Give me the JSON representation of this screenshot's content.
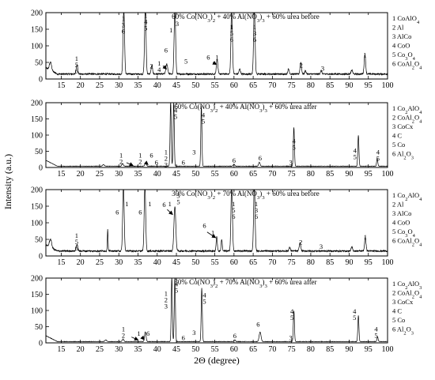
{
  "figure": {
    "ylabel": "Intensity (a.u.)",
    "xlabel": "2Θ (degree)"
  },
  "chart_data": [
    {
      "type": "line",
      "title": "60% Co(NO3)2 + 40% Al(NO3)3 + 60% urea before",
      "xlim": [
        11,
        100
      ],
      "ylim": [
        0,
        200
      ],
      "xticks": [
        15,
        20,
        25,
        30,
        35,
        40,
        45,
        50,
        55,
        60,
        65,
        70,
        75,
        80,
        85,
        90,
        95,
        100
      ],
      "yticks": [
        0,
        50,
        100,
        150,
        200
      ],
      "baseline": 15,
      "peaks": [
        {
          "x": 12.2,
          "h": 25,
          "w": 0.6
        },
        {
          "x": 19.1,
          "h": 30,
          "w": 0.4
        },
        {
          "x": 31.3,
          "h": 200,
          "w": 0.4
        },
        {
          "x": 36.9,
          "h": 200,
          "w": 0.4
        },
        {
          "x": 38.6,
          "h": 25,
          "w": 0.4
        },
        {
          "x": 42.5,
          "h": 30,
          "w": 0.5
        },
        {
          "x": 44.6,
          "h": 200,
          "w": 0.4
        },
        {
          "x": 55.6,
          "h": 45,
          "w": 0.4
        },
        {
          "x": 59.4,
          "h": 200,
          "w": 0.4
        },
        {
          "x": 61.5,
          "h": 15,
          "w": 0.4
        },
        {
          "x": 65.3,
          "h": 200,
          "w": 0.4
        },
        {
          "x": 74.2,
          "h": 15,
          "w": 0.4
        },
        {
          "x": 77.4,
          "h": 35,
          "w": 0.4
        },
        {
          "x": 78.6,
          "h": 10,
          "w": 0.4
        },
        {
          "x": 82.7,
          "h": 10,
          "w": 0.4
        },
        {
          "x": 90.7,
          "h": 12,
          "w": 0.4
        },
        {
          "x": 94.1,
          "h": 60,
          "w": 0.4
        }
      ],
      "legend": [
        "1 CoAlO4",
        "2 Al",
        "3 AlCo",
        "4 CoO",
        "5 Co3O4",
        "6 CoAl2O4"
      ],
      "annotations": [
        {
          "x": 19,
          "y": 55,
          "lines": [
            "1",
            "5",
            "6"
          ]
        },
        {
          "x": 31.2,
          "y": 175,
          "lines": [
            "1",
            "3",
            "6"
          ]
        },
        {
          "x": 37,
          "y": 185,
          "lines": [
            "1",
            "4",
            "5"
          ]
        },
        {
          "x": 38.5,
          "y": 32,
          "lines": [
            "2"
          ]
        },
        {
          "x": 40.5,
          "y": 40,
          "lines": [
            "1",
            "4"
          ]
        },
        {
          "x": 42.3,
          "y": 80,
          "lines": [
            "6"
          ]
        },
        {
          "x": 43.6,
          "y": 140,
          "lines": [
            "1"
          ]
        },
        {
          "x": 45.2,
          "y": 160,
          "lines": [
            "3"
          ]
        },
        {
          "x": 47.5,
          "y": 47,
          "lines": [
            "5"
          ]
        },
        {
          "x": 53.3,
          "y": 58,
          "lines": [
            "6"
          ]
        },
        {
          "x": 55.6,
          "y": 58,
          "lines": [
            "1"
          ]
        },
        {
          "x": 59.4,
          "y": 150,
          "lines": [
            "1",
            "5",
            "6"
          ]
        },
        {
          "x": 65.4,
          "y": 150,
          "lines": [
            "1",
            "3",
            "6"
          ]
        },
        {
          "x": 77.5,
          "y": 35,
          "lines": [
            "2"
          ]
        },
        {
          "x": 83.1,
          "y": 25,
          "lines": [
            "3"
          ]
        },
        {
          "x": 94.1,
          "y": 65,
          "lines": [
            "1"
          ]
        }
      ],
      "arrows": [
        {
          "from": [
            41.5,
            40
          ],
          "to": [
            42.4,
            30
          ]
        },
        {
          "from": [
            54.5,
            50
          ],
          "to": [
            55.4,
            44
          ]
        }
      ]
    },
    {
      "type": "line",
      "title": "60% Co(NO3)2 + 40% Al(NO3)3 + 60% urea after",
      "xlim": [
        11,
        100
      ],
      "ylim": [
        0,
        200
      ],
      "xticks": [
        15,
        20,
        25,
        30,
        35,
        40,
        45,
        50,
        55,
        60,
        65,
        70,
        75,
        80,
        85,
        90,
        95,
        100
      ],
      "yticks": [
        0,
        50,
        100,
        150,
        200
      ],
      "baseline": 4,
      "peaks": [
        {
          "x": 26,
          "h": 5,
          "w": 0.5
        },
        {
          "x": 31,
          "h": 8,
          "w": 0.4
        },
        {
          "x": 37,
          "h": 12,
          "w": 0.4
        },
        {
          "x": 43.5,
          "h": 200,
          "w": 0.3
        },
        {
          "x": 44.3,
          "h": 200,
          "w": 0.3
        },
        {
          "x": 51.5,
          "h": 185,
          "w": 0.3
        },
        {
          "x": 60,
          "h": 6,
          "w": 0.4
        },
        {
          "x": 66.6,
          "h": 12,
          "w": 0.4
        },
        {
          "x": 75.6,
          "h": 120,
          "w": 0.3
        },
        {
          "x": 92.4,
          "h": 95,
          "w": 0.3
        },
        {
          "x": 97.3,
          "h": 25,
          "w": 0.3
        }
      ],
      "legend": [
        "1 Co2AlO4",
        "2 CoAl2O4",
        "3 CoCx",
        "4 C",
        "5 Co",
        "6 Al2O3"
      ],
      "annotations": [
        {
          "x": 30.6,
          "y": 30,
          "lines": [
            "1",
            "2"
          ]
        },
        {
          "x": 35.6,
          "y": 30,
          "lines": [
            "1",
            "2"
          ]
        },
        {
          "x": 38.5,
          "y": 30,
          "lines": [
            "6"
          ]
        },
        {
          "x": 39.8,
          "y": 8,
          "lines": [
            "6"
          ]
        },
        {
          "x": 42.3,
          "y": 40,
          "lines": [
            "1",
            "2",
            "3"
          ]
        },
        {
          "x": 44.8,
          "y": 170,
          "lines": [
            "4",
            "5"
          ]
        },
        {
          "x": 46.8,
          "y": 8,
          "lines": [
            "6"
          ]
        },
        {
          "x": 49.6,
          "y": 40,
          "lines": [
            "3"
          ]
        },
        {
          "x": 52,
          "y": 155,
          "lines": [
            "4",
            "5"
          ]
        },
        {
          "x": 60,
          "y": 15,
          "lines": [
            "6"
          ]
        },
        {
          "x": 66.8,
          "y": 22,
          "lines": [
            "6"
          ]
        },
        {
          "x": 74.8,
          "y": 8,
          "lines": [
            "3"
          ]
        },
        {
          "x": 75.6,
          "y": 75,
          "lines": [
            "4",
            "5"
          ]
        },
        {
          "x": 91.5,
          "y": 45,
          "lines": [
            "4",
            "5"
          ]
        },
        {
          "x": 97.5,
          "y": 40,
          "lines": [
            "4",
            "5"
          ]
        }
      ],
      "arrows": [
        {
          "from": [
            32,
            15
          ],
          "to": [
            33.7,
            6
          ]
        },
        {
          "from": [
            37,
            15
          ],
          "to": [
            37.6,
            9
          ]
        }
      ]
    },
    {
      "type": "line",
      "title": "30% Co(NO3)2 + 70% Al(NO3)3 + 60% urea before",
      "xlim": [
        11,
        100
      ],
      "ylim": [
        0,
        200
      ],
      "xticks": [
        15,
        20,
        25,
        30,
        35,
        40,
        45,
        50,
        55,
        60,
        65,
        70,
        75,
        80,
        85,
        90,
        95,
        100
      ],
      "yticks": [
        0,
        50,
        100,
        150,
        200
      ],
      "baseline": 15,
      "peaks": [
        {
          "x": 12.2,
          "h": 25,
          "w": 0.6
        },
        {
          "x": 19.1,
          "h": 20,
          "w": 0.4
        },
        {
          "x": 27.1,
          "h": 65,
          "w": 0.2
        },
        {
          "x": 31.2,
          "h": 200,
          "w": 0.4
        },
        {
          "x": 36.8,
          "h": 200,
          "w": 0.4
        },
        {
          "x": 44.6,
          "h": 135,
          "w": 0.5
        },
        {
          "x": 55.5,
          "h": 45,
          "w": 0.3
        },
        {
          "x": 56.8,
          "h": 35,
          "w": 0.3
        },
        {
          "x": 59.4,
          "h": 200,
          "w": 0.4
        },
        {
          "x": 65.3,
          "h": 200,
          "w": 0.4
        },
        {
          "x": 74.5,
          "h": 10,
          "w": 0.4
        },
        {
          "x": 77.2,
          "h": 25,
          "w": 0.4
        },
        {
          "x": 90.7,
          "h": 12,
          "w": 0.4
        },
        {
          "x": 94.2,
          "h": 40,
          "w": 0.4
        }
      ],
      "legend": [
        "1 Co2AlO4",
        "2 Al",
        "3 AlCo",
        "4 CoO",
        "5 Co3O4",
        "6 CoAl2O4"
      ],
      "annotations": [
        {
          "x": 19,
          "y": 55,
          "lines": [
            "1",
            "5",
            "6"
          ]
        },
        {
          "x": 29.6,
          "y": 125,
          "lines": [
            "6"
          ]
        },
        {
          "x": 32.1,
          "y": 150,
          "lines": [
            "1"
          ]
        },
        {
          "x": 35.6,
          "y": 125,
          "lines": [
            "6"
          ]
        },
        {
          "x": 38.1,
          "y": 150,
          "lines": [
            "1"
          ]
        },
        {
          "x": 41.8,
          "y": 148,
          "lines": [
            "6"
          ]
        },
        {
          "x": 43.3,
          "y": 150,
          "lines": [
            "1"
          ]
        },
        {
          "x": 45.5,
          "y": 175,
          "lines": [
            "3",
            "5"
          ]
        },
        {
          "x": 52.3,
          "y": 85,
          "lines": [
            "6"
          ]
        },
        {
          "x": 54.5,
          "y": 63,
          "lines": [
            "1"
          ]
        },
        {
          "x": 59.9,
          "y": 150,
          "lines": [
            "1",
            "5",
            "6"
          ]
        },
        {
          "x": 65.8,
          "y": 150,
          "lines": [
            "1",
            "3",
            "6"
          ]
        },
        {
          "x": 77.4,
          "y": 35,
          "lines": [
            "2"
          ]
        },
        {
          "x": 82.7,
          "y": 22,
          "lines": [
            "3"
          ]
        },
        {
          "x": 94.2,
          "y": 50,
          "lines": [
            "1"
          ]
        }
      ],
      "arrows": [
        {
          "from": [
            42.6,
            140
          ],
          "to": [
            44,
            125
          ]
        },
        {
          "from": [
            53,
            72
          ],
          "to": [
            55.2,
            55
          ]
        }
      ]
    },
    {
      "type": "line",
      "title": "30% Co(NO3)2 + 70% Al(NO3)3 + 60% urea after",
      "xlim": [
        11,
        100
      ],
      "ylim": [
        0,
        200
      ],
      "xticks": [
        15,
        20,
        25,
        30,
        35,
        40,
        45,
        50,
        55,
        60,
        65,
        70,
        75,
        80,
        85,
        90,
        95,
        100
      ],
      "yticks": [
        0,
        50,
        100,
        150,
        200
      ],
      "baseline": 4,
      "peaks": [
        {
          "x": 26.6,
          "h": 5,
          "w": 0.5
        },
        {
          "x": 31.1,
          "h": 8,
          "w": 0.4
        },
        {
          "x": 36.9,
          "h": 30,
          "w": 0.4
        },
        {
          "x": 43.8,
          "h": 200,
          "w": 0.3
        },
        {
          "x": 44.6,
          "h": 200,
          "w": 0.3
        },
        {
          "x": 51.6,
          "h": 165,
          "w": 0.3
        },
        {
          "x": 60.2,
          "h": 5,
          "w": 0.4
        },
        {
          "x": 66.8,
          "h": 30,
          "w": 0.5
        },
        {
          "x": 75.6,
          "h": 95,
          "w": 0.3
        },
        {
          "x": 92.4,
          "h": 80,
          "w": 0.3
        },
        {
          "x": 97.4,
          "h": 15,
          "w": 0.3
        }
      ],
      "legend": [
        "1 Co2AlO3",
        "2 CoAl2O4",
        "3 CoCx",
        "4 C",
        "5 Co",
        "6 Al2O3"
      ],
      "annotations": [
        {
          "x": 31.2,
          "y": 35,
          "lines": [
            "1",
            "2"
          ]
        },
        {
          "x": 35.2,
          "y": 22,
          "lines": [
            "1"
          ]
        },
        {
          "x": 37.6,
          "y": 22,
          "lines": [
            "6"
          ]
        },
        {
          "x": 42.3,
          "y": 145,
          "lines": [
            "1",
            "2",
            "3"
          ]
        },
        {
          "x": 45,
          "y": 175,
          "lines": [
            "4",
            "5"
          ]
        },
        {
          "x": 46.8,
          "y": 8,
          "lines": [
            "6"
          ]
        },
        {
          "x": 49.6,
          "y": 25,
          "lines": [
            "3"
          ]
        },
        {
          "x": 52.3,
          "y": 140,
          "lines": [
            "4",
            "5"
          ]
        },
        {
          "x": 60.2,
          "y": 15,
          "lines": [
            "6"
          ]
        },
        {
          "x": 66.3,
          "y": 50,
          "lines": [
            "6"
          ]
        },
        {
          "x": 74.8,
          "y": 8,
          "lines": [
            "3"
          ]
        },
        {
          "x": 75.1,
          "y": 90,
          "lines": [
            "4",
            "5"
          ]
        },
        {
          "x": 91.4,
          "y": 90,
          "lines": [
            "4",
            "5"
          ]
        },
        {
          "x": 97,
          "y": 35,
          "lines": [
            "4",
            "5"
          ]
        }
      ],
      "arrows": [
        {
          "from": [
            33.3,
            18
          ],
          "to": [
            35,
            9
          ]
        },
        {
          "from": [
            36,
            18
          ],
          "to": [
            36.6,
            10
          ]
        }
      ]
    }
  ]
}
